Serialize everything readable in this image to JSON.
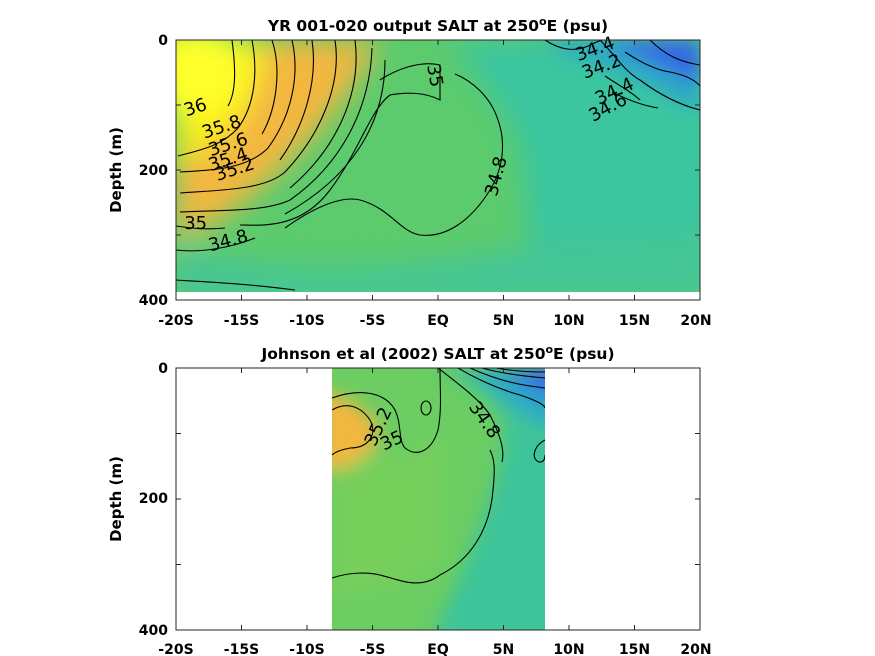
{
  "chart_data": [
    {
      "type": "contour",
      "title": {
        "pre": "YR 001-020 output SALT at 250",
        "sup": "o",
        "post": "E (psu)"
      },
      "xlabel": "",
      "ylabel": "Depth (m)",
      "xticks": [
        "-20S",
        "-15S",
        "-10S",
        "-5S",
        "EQ",
        "5N",
        "10N",
        "15N",
        "20N"
      ],
      "yticks": [
        "0",
        "200",
        "400"
      ],
      "xlim": [
        -20,
        20
      ],
      "ylim": [
        0,
        400
      ],
      "data_extent": {
        "lat": [
          -20,
          20
        ],
        "depth": [
          0,
          385
        ]
      },
      "contour_labels": [
        {
          "text": "36",
          "lat": -18.5,
          "depth": 105
        },
        {
          "text": "35.8",
          "lat": -16.5,
          "depth": 135
        },
        {
          "text": "35.6",
          "lat": -16.0,
          "depth": 162
        },
        {
          "text": "35.4",
          "lat": -16.0,
          "depth": 185
        },
        {
          "text": "35.2",
          "lat": -15.5,
          "depth": 200
        },
        {
          "text": "35",
          "lat": -18.5,
          "depth": 283
        },
        {
          "text": "34.8",
          "lat": -16.0,
          "depth": 310
        },
        {
          "text": "35",
          "lat": -0.3,
          "depth": 55
        },
        {
          "text": "34.8",
          "lat": 4.5,
          "depth": 210
        },
        {
          "text": "34.4",
          "lat": 12.0,
          "depth": 15
        },
        {
          "text": "34.2",
          "lat": 12.5,
          "depth": 42
        },
        {
          "text": "34.4",
          "lat": 13.5,
          "depth": 80
        },
        {
          "text": "34.6",
          "lat": 13.0,
          "depth": 105
        }
      ],
      "colors": {
        "salty": "#f9ee1e",
        "orange": "#f3b740",
        "green": "#5ccb6d",
        "teal": "#3bc6a0",
        "fresh": "#3466e6"
      }
    },
    {
      "type": "contour",
      "title": {
        "pre": "Johnson et al (2002) SALT at 250",
        "sup": "o",
        "post": "E (psu)"
      },
      "xlabel": "",
      "ylabel": "Depth (m)",
      "xticks": [
        "-20S",
        "-15S",
        "-10S",
        "-5S",
        "EQ",
        "5N",
        "10N",
        "15N",
        "20N"
      ],
      "yticks": [
        "0",
        "200",
        "400"
      ],
      "xlim": [
        -20,
        20
      ],
      "ylim": [
        0,
        400
      ],
      "data_extent": {
        "lat": [
          -8,
          8.2
        ],
        "depth": [
          0,
          400
        ]
      },
      "contour_labels": [
        {
          "text": "35.2",
          "lat": -4.5,
          "depth": 90
        },
        {
          "text": "35",
          "lat": -3.5,
          "depth": 112
        },
        {
          "text": "34.8",
          "lat": 3.5,
          "depth": 80
        }
      ],
      "colors": {
        "orange": "#f3b740",
        "green": "#6bcd62",
        "teal": "#3dc49a",
        "fresh": "#3466e6"
      }
    }
  ]
}
